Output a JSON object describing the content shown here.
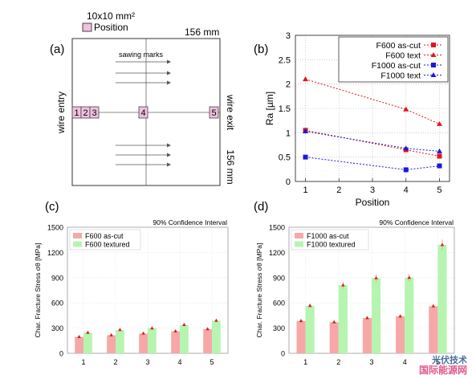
{
  "panels": {
    "a": {
      "label": "(a)",
      "legend_title": "10x10 mm²",
      "legend_item": "Position",
      "width_label": "156 mm",
      "height_label": "156 mm",
      "sawing_label": "sawing marks",
      "left_label": "wire entry",
      "right_label": "wire exit",
      "positions": [
        "1",
        "2",
        "3",
        "4",
        "5"
      ]
    },
    "b": {
      "label": "(b)"
    },
    "c": {
      "label": "(c)"
    },
    "d": {
      "label": "(d)"
    }
  },
  "watermark": {
    "line1": "光伏技术",
    "line2": "国际能源网"
  },
  "colors": {
    "red": "#e0151b",
    "blue": "#1a1ad8",
    "pink_bar": "#f7a7a7",
    "green_bar": "#b5f5b0",
    "marker": "#d02020"
  },
  "chart_data": [
    {
      "id": "b",
      "type": "line",
      "xlabel": "Position",
      "ylabel": "Ra [µm]",
      "x": [
        1,
        4,
        5
      ],
      "xlim": [
        0.7,
        5.3
      ],
      "ylim": [
        0,
        3
      ],
      "xticks": [
        "1",
        "2",
        "3",
        "4",
        "5"
      ],
      "yticks": [
        "0",
        "0.5",
        "1",
        "1.5",
        "2",
        "2.5",
        "3"
      ],
      "grid": true,
      "legend_position": "top-right",
      "series": [
        {
          "name": "F600 as-cut",
          "values": [
            1.05,
            0.65,
            0.52
          ],
          "color": "#e0151b",
          "marker": "square"
        },
        {
          "name": "F600 text",
          "values": [
            2.1,
            1.48,
            1.18
          ],
          "color": "#e0151b",
          "marker": "triangle"
        },
        {
          "name": "F1000 as-cut",
          "values": [
            0.5,
            0.24,
            0.32
          ],
          "color": "#1a1ad8",
          "marker": "square"
        },
        {
          "name": "F1000 text",
          "values": [
            1.03,
            0.68,
            0.62
          ],
          "color": "#1a1ad8",
          "marker": "triangle"
        }
      ]
    },
    {
      "id": "c",
      "type": "bar",
      "annotation": "90% Confidence Interval",
      "ylabel": "Char. Fracture Stress σθ [MPa]",
      "ylim": [
        0,
        1500
      ],
      "yticks": [
        "0",
        "300",
        "600",
        "900",
        "1200",
        "1500"
      ],
      "categories": [
        "1",
        "2",
        "3",
        "4",
        "5"
      ],
      "legend_position": "top-left",
      "series": [
        {
          "name": "F600 as-cut",
          "values": [
            195,
            215,
            235,
            262,
            288
          ],
          "color": "#f7a7a7"
        },
        {
          "name": "F600 textured",
          "values": [
            245,
            278,
            298,
            338,
            388
          ],
          "color": "#b5f5b0"
        }
      ]
    },
    {
      "id": "d",
      "type": "bar",
      "annotation": "90% Confidence Interval",
      "ylabel": "Char. Fracture Stress σθ [MPa]",
      "ylim": [
        0,
        1500
      ],
      "yticks": [
        "0",
        "300",
        "600",
        "900",
        "1200",
        "1500"
      ],
      "categories": [
        "1",
        "2",
        "3",
        "4",
        "5"
      ],
      "legend_position": "top-left",
      "series": [
        {
          "name": "F1000 as-cut",
          "values": [
            385,
            370,
            420,
            440,
            560
          ],
          "color": "#f7a7a7"
        },
        {
          "name": "F1000 textured",
          "values": [
            565,
            810,
            895,
            900,
            1290
          ],
          "color": "#b5f5b0"
        }
      ]
    }
  ]
}
